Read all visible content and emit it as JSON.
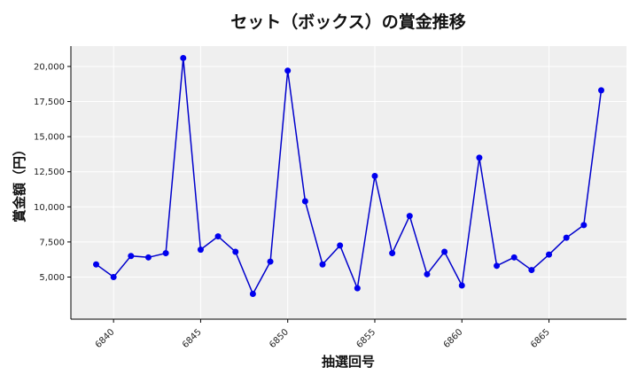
{
  "chart_data": {
    "type": "line",
    "title": "セット（ボックス）の賞金推移",
    "xlabel": "抽選回号",
    "ylabel": "賞金額（円）",
    "x": [
      6839,
      6840,
      6841,
      6842,
      6843,
      6844,
      6845,
      6846,
      6847,
      6848,
      6849,
      6850,
      6851,
      6852,
      6853,
      6854,
      6855,
      6856,
      6857,
      6858,
      6859,
      6860,
      6861,
      6862,
      6863,
      6864,
      6865,
      6866,
      6867,
      6868
    ],
    "y": [
      5900,
      5000,
      6500,
      6400,
      6700,
      20600,
      6950,
      7900,
      6800,
      3800,
      6100,
      19700,
      10400,
      5900,
      7250,
      4200,
      12200,
      6700,
      9350,
      5200,
      6800,
      4400,
      13500,
      5800,
      6400,
      5500,
      6600,
      7800,
      8700,
      18300
    ],
    "xticks": [
      6840,
      6845,
      6850,
      6855,
      6860,
      6865
    ],
    "yticks": [
      5000,
      7500,
      10000,
      12500,
      15000,
      17500,
      20000
    ],
    "ytick_labels": [
      "5,000",
      "7,500",
      "10,000",
      "12,500",
      "15,000",
      "17,500",
      "20,000"
    ],
    "xlim": [
      6837.55,
      6869.45
    ],
    "ylim": [
      2000,
      21450
    ],
    "grid": true,
    "colors": {
      "line": "#0000cc",
      "marker": "#0000ee",
      "background": "#efefef",
      "grid": "#ffffff"
    }
  }
}
